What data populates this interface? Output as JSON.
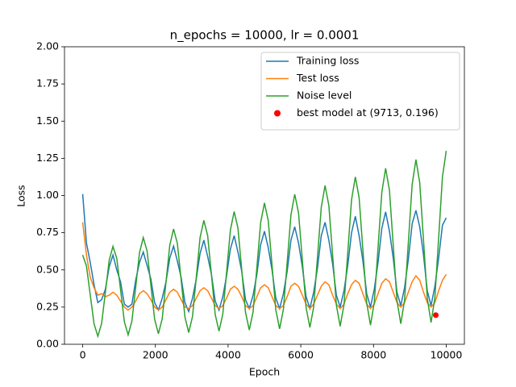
{
  "chart_data": {
    "type": "line",
    "title": "n_epochs = 10000, lr = 0.0001",
    "xlabel": "Epoch",
    "ylabel": "Loss",
    "xlim": [
      -500,
      10500
    ],
    "ylim": [
      0,
      2
    ],
    "xticks": [
      0,
      2000,
      4000,
      6000,
      8000,
      10000
    ],
    "yticks": [
      {
        "value": 0,
        "label": "0.00"
      },
      {
        "value": 0.25,
        "label": "0.25"
      },
      {
        "value": 0.5,
        "label": "0.50"
      },
      {
        "value": 0.75,
        "label": "0.75"
      },
      {
        "value": 1,
        "label": "1.00"
      },
      {
        "value": 1.25,
        "label": "1.25"
      },
      {
        "value": 1.5,
        "label": "1.50"
      },
      {
        "value": 1.75,
        "label": "1.75"
      },
      {
        "value": 2,
        "label": "2.00"
      }
    ],
    "legend": "upper right",
    "grid": false,
    "x": [
      0,
      104,
      208,
      313,
      417,
      521,
      625,
      729,
      833,
      938,
      1042,
      1146,
      1250,
      1354,
      1458,
      1563,
      1667,
      1771,
      1875,
      1979,
      2083,
      2188,
      2292,
      2396,
      2500,
      2604,
      2708,
      2813,
      2917,
      3021,
      3125,
      3229,
      3333,
      3438,
      3542,
      3646,
      3750,
      3854,
      3958,
      4063,
      4167,
      4271,
      4375,
      4479,
      4583,
      4688,
      4792,
      4896,
      5000,
      5104,
      5208,
      5313,
      5417,
      5521,
      5625,
      5729,
      5833,
      5938,
      6042,
      6146,
      6250,
      6354,
      6458,
      6563,
      6667,
      6771,
      6875,
      6979,
      7083,
      7188,
      7292,
      7396,
      7500,
      7604,
      7708,
      7813,
      7917,
      8021,
      8125,
      8229,
      8333,
      8438,
      8542,
      8646,
      8750,
      8854,
      8958,
      9063,
      9167,
      9271,
      9375,
      9479,
      9583,
      9688,
      9792,
      9896,
      10000
    ],
    "series": [
      {
        "name": "Training loss",
        "color": "#1f77b4",
        "values": [
          1.01,
          0.68,
          0.55,
          0.4,
          0.28,
          0.3,
          0.37,
          0.52,
          0.6,
          0.5,
          0.42,
          0.27,
          0.25,
          0.27,
          0.43,
          0.55,
          0.62,
          0.53,
          0.44,
          0.28,
          0.23,
          0.31,
          0.42,
          0.58,
          0.66,
          0.56,
          0.45,
          0.28,
          0.22,
          0.31,
          0.44,
          0.61,
          0.7,
          0.59,
          0.47,
          0.29,
          0.23,
          0.32,
          0.46,
          0.64,
          0.73,
          0.62,
          0.49,
          0.3,
          0.24,
          0.33,
          0.47,
          0.67,
          0.76,
          0.65,
          0.5,
          0.31,
          0.24,
          0.34,
          0.49,
          0.7,
          0.79,
          0.68,
          0.52,
          0.32,
          0.24,
          0.35,
          0.51,
          0.73,
          0.82,
          0.7,
          0.54,
          0.33,
          0.25,
          0.36,
          0.53,
          0.75,
          0.86,
          0.73,
          0.56,
          0.34,
          0.25,
          0.37,
          0.55,
          0.78,
          0.89,
          0.76,
          0.58,
          0.35,
          0.26,
          0.38,
          0.57,
          0.81,
          0.9,
          0.79,
          0.6,
          0.36,
          0.26,
          0.39,
          0.58,
          0.8,
          0.85
        ]
      },
      {
        "name": "Test loss",
        "color": "#ff7f0e",
        "values": [
          0.82,
          0.6,
          0.45,
          0.38,
          0.33,
          0.34,
          0.32,
          0.33,
          0.35,
          0.33,
          0.29,
          0.25,
          0.23,
          0.25,
          0.29,
          0.34,
          0.36,
          0.34,
          0.3,
          0.25,
          0.23,
          0.25,
          0.3,
          0.35,
          0.37,
          0.35,
          0.3,
          0.25,
          0.24,
          0.26,
          0.31,
          0.36,
          0.38,
          0.36,
          0.31,
          0.26,
          0.24,
          0.26,
          0.31,
          0.37,
          0.39,
          0.37,
          0.32,
          0.26,
          0.24,
          0.26,
          0.32,
          0.38,
          0.4,
          0.38,
          0.32,
          0.26,
          0.24,
          0.26,
          0.32,
          0.39,
          0.41,
          0.39,
          0.33,
          0.27,
          0.24,
          0.27,
          0.33,
          0.39,
          0.42,
          0.4,
          0.33,
          0.27,
          0.24,
          0.27,
          0.34,
          0.4,
          0.43,
          0.41,
          0.34,
          0.27,
          0.24,
          0.27,
          0.34,
          0.41,
          0.44,
          0.42,
          0.35,
          0.28,
          0.25,
          0.28,
          0.35,
          0.42,
          0.46,
          0.43,
          0.35,
          0.28,
          0.25,
          0.28,
          0.36,
          0.43,
          0.47
        ]
      },
      {
        "name": "Noise level",
        "color": "#2ca02c",
        "values": [
          0.6,
          0.526,
          0.333,
          0.137,
          0.054,
          0.14,
          0.35,
          0.564,
          0.658,
          0.577,
          0.367,
          0.152,
          0.063,
          0.156,
          0.383,
          0.615,
          0.717,
          0.628,
          0.4,
          0.168,
          0.071,
          0.172,
          0.417,
          0.666,
          0.775,
          0.679,
          0.433,
          0.183,
          0.079,
          0.187,
          0.45,
          0.717,
          0.833,
          0.73,
          0.467,
          0.199,
          0.088,
          0.203,
          0.483,
          0.768,
          0.892,
          0.781,
          0.5,
          0.215,
          0.096,
          0.219,
          0.517,
          0.819,
          0.95,
          0.832,
          0.533,
          0.23,
          0.104,
          0.234,
          0.55,
          0.87,
          1.008,
          0.883,
          0.567,
          0.246,
          0.113,
          0.25,
          0.583,
          0.921,
          1.067,
          0.934,
          0.6,
          0.262,
          0.121,
          0.266,
          0.617,
          0.972,
          1.125,
          0.985,
          0.633,
          0.277,
          0.129,
          0.281,
          0.65,
          1.023,
          1.183,
          1.036,
          0.667,
          0.293,
          0.138,
          0.297,
          0.683,
          1.074,
          1.242,
          1.087,
          0.7,
          0.309,
          0.146,
          0.313,
          0.717,
          1.125,
          1.3
        ]
      },
      {
        "name": "best model at (9713, 0.196)",
        "color": "#ff0000",
        "type": "scatter",
        "x": [
          9713
        ],
        "values": [
          0.196
        ]
      }
    ]
  }
}
